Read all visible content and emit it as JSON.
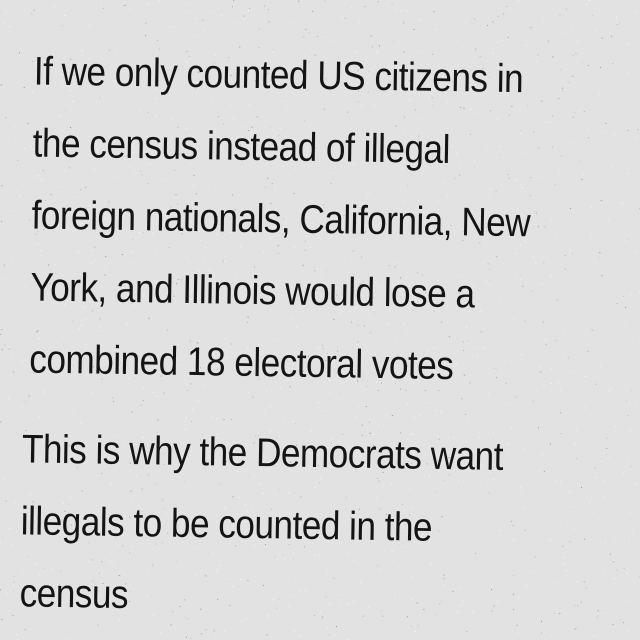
{
  "post": {
    "paragraph_1_lines": [
      "If we only counted US citizens in",
      "the census instead of illegal",
      "foreign nationals, California, New",
      "York, and Illinois would lose a",
      "combined 18 electoral votes"
    ],
    "paragraph_2_lines": [
      "This is why the Democrats want",
      "illegals to be counted in the",
      "census"
    ]
  },
  "colors": {
    "background": "#e2e2e2",
    "text": "#141414"
  }
}
